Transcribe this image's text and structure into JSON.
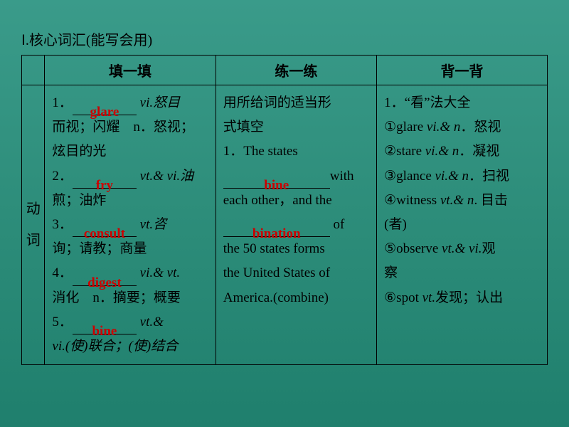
{
  "background_gradient": [
    "#3a9b8a",
    "#1f7f6d"
  ],
  "answer_color": "#cc0000",
  "border_color": "#000000",
  "text_color": "#000000",
  "title": "Ⅰ.核心词汇(能写会用)",
  "headers": {
    "blank": "",
    "col1": "填一填",
    "col2": "练一练",
    "col3": "背一背"
  },
  "rowLabel": {
    "c1": "动",
    "c2": "词"
  },
  "fillCol": {
    "l1_num": "1．",
    "l1_ans": "glare",
    "l1_txt_a": " vi.怒目",
    "l1b": "而视；闪耀　n．怒视；",
    "l1c": "炫目的光",
    "l2_num": "2．",
    "l2_ans": "fry",
    "l2_txt": " vt.& vi.油",
    "l2b": "煎；油炸",
    "l3_num": "3．",
    "l3_ans": "consult",
    "l3_txt": " vt.咨",
    "l3b": "询；请教；商量",
    "l4_num": "4．",
    "l4_ans": "digest",
    "l4_txt": " vi.& vt.",
    "l4b": "消化　n．摘要；概要",
    "l5_num": "5．",
    "l5_ans": "bine",
    "l5_txt": " vt.&",
    "l5b": "vi.(使)联合；(使)结合"
  },
  "practiceCol": {
    "l1": "用所给词的适当形",
    "l2": "式填空",
    "l3a": "1．The states ",
    "l3_ans": "bine",
    "l3b": "with",
    "l4": "each other，and the ",
    "l4_ans": "bination",
    "l4b": " of",
    "l5": "the 50 states forms",
    "l6": "the United States of",
    "l7": "America.(combine)"
  },
  "memCol": {
    "l1": "1．“看”法大全",
    "l2a": "①glare ",
    "l2b": "vi.& n",
    "l2c": "．怒视",
    "l3a": "②stare ",
    "l3b": "vi.& n",
    "l3c": "．凝视",
    "l4a": "③glance ",
    "l4b": "vi.& n",
    "l4c": "．扫视",
    "l5a": "④witness ",
    "l5b": "vt.& n",
    "l5c": ". 目击",
    "l5d": "(者)",
    "l6a": "⑤observe ",
    "l6b": "vt.& vi.",
    "l6c": "观",
    "l6d": "察",
    "l7a": "⑥spot ",
    "l7b": "vt.",
    "l7c": "发现；认出"
  }
}
